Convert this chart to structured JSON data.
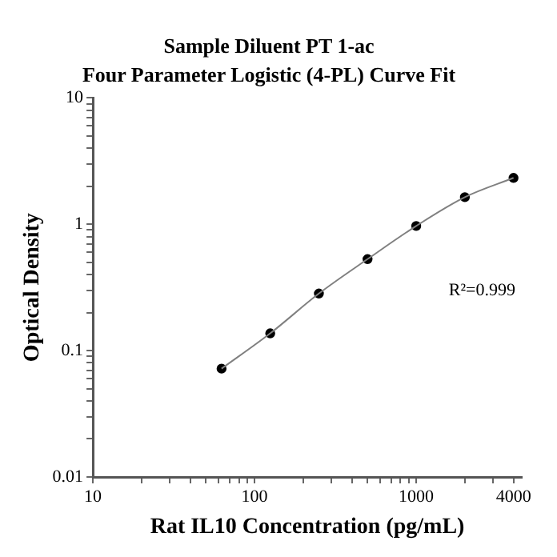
{
  "chart_data": {
    "type": "scatter",
    "title": "Sample Diluent PT 1-ac",
    "subtitle": "Four Parameter Logistic (4-PL) Curve Fit",
    "xlabel": "Rat IL10 Concentration (pg/mL)",
    "ylabel": "Optical Density",
    "x": [
      62.5,
      125,
      250,
      500,
      1000,
      2000,
      4000
    ],
    "series": [
      {
        "type": "line",
        "color": "#808080",
        "marker": "none",
        "values": [
          0.072,
          0.137,
          0.283,
          0.53,
          0.97,
          1.64,
          2.33
        ]
      },
      {
        "color": "#000000",
        "marker": "circle",
        "values": [
          0.072,
          0.137,
          0.283,
          0.53,
          0.97,
          1.64,
          2.33
        ]
      }
    ],
    "log": "xy",
    "xlim": [
      10,
      4500
    ],
    "ylim": [
      0.01,
      10
    ],
    "xticks": [
      10,
      {
        "value": 20,
        "label": null
      },
      {
        "value": 30,
        "label": null
      },
      {
        "value": 40,
        "label": null
      },
      {
        "value": 50,
        "label": null
      },
      {
        "value": 60,
        "label": null
      },
      {
        "value": 70,
        "label": null
      },
      {
        "value": 80,
        "label": null
      },
      {
        "value": 90,
        "label": null
      },
      100,
      {
        "value": 200,
        "label": null
      },
      {
        "value": 300,
        "label": null
      },
      {
        "value": 400,
        "label": null
      },
      {
        "value": 500,
        "label": null
      },
      {
        "value": 600,
        "label": null
      },
      {
        "value": 700,
        "label": null
      },
      {
        "value": 800,
        "label": null
      },
      {
        "value": 900,
        "label": null
      },
      1000,
      {
        "value": 2000,
        "label": null
      },
      {
        "value": 3000,
        "label": null
      },
      4000
    ],
    "yticks": [
      0.01,
      {
        "value": 0.02,
        "label": null
      },
      {
        "value": 0.03,
        "label": null
      },
      {
        "value": 0.04,
        "label": null
      },
      {
        "value": 0.05,
        "label": null
      },
      {
        "value": 0.06,
        "label": null
      },
      {
        "value": 0.07,
        "label": null
      },
      {
        "value": 0.08,
        "label": null
      },
      {
        "value": 0.09,
        "label": null
      },
      0.1,
      {
        "value": 0.2,
        "label": null
      },
      {
        "value": 0.3,
        "label": null
      },
      {
        "value": 0.4,
        "label": null
      },
      {
        "value": 0.5,
        "label": null
      },
      {
        "value": 0.6,
        "label": null
      },
      {
        "value": 0.7,
        "label": null
      },
      {
        "value": 0.8,
        "label": null
      },
      {
        "value": 0.9,
        "label": null
      },
      1,
      {
        "value": 2,
        "label": null
      },
      {
        "value": 3,
        "label": null
      },
      {
        "value": 4,
        "label": null
      },
      {
        "value": 5,
        "label": null
      },
      {
        "value": 6,
        "label": null
      },
      {
        "value": 7,
        "label": null
      },
      {
        "value": 8,
        "label": null
      },
      {
        "value": 9,
        "label": null
      },
      10
    ],
    "annotations": [
      "R²=0.999"
    ],
    "grid": false,
    "legend": false
  }
}
